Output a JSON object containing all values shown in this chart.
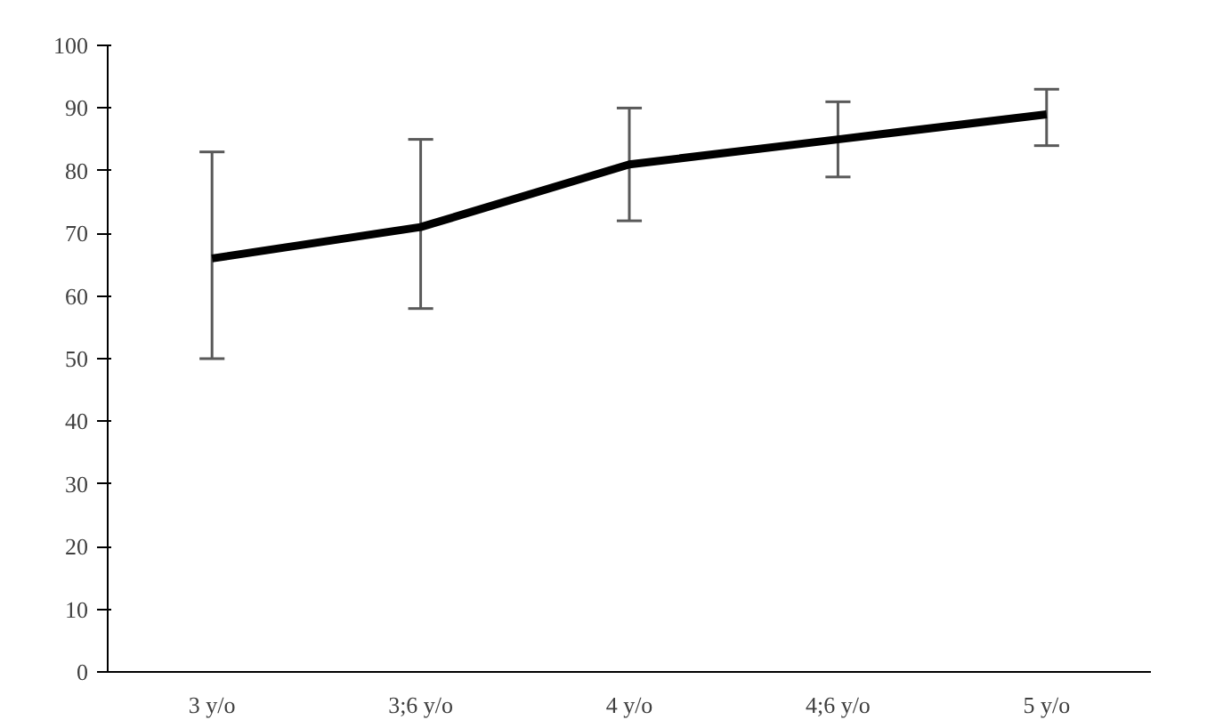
{
  "chart_data": {
    "type": "line",
    "categories": [
      "3 y/o",
      "3;6 y/o",
      "4 y/o",
      "4;6 y/o",
      "5 y/o"
    ],
    "series": [
      {
        "color": "#000000",
        "values": [
          66,
          71,
          81,
          85,
          89
        ],
        "errors": [
          [
            50,
            83
          ],
          [
            58,
            85
          ],
          [
            72,
            90
          ],
          [
            79,
            91
          ],
          [
            84,
            93
          ]
        ]
      }
    ],
    "ylim": [
      0,
      100
    ],
    "yticks": [
      0,
      10,
      20,
      30,
      40,
      50,
      60,
      70,
      80,
      90,
      100
    ],
    "grid": false,
    "marker": "none",
    "line_style": "solid"
  }
}
